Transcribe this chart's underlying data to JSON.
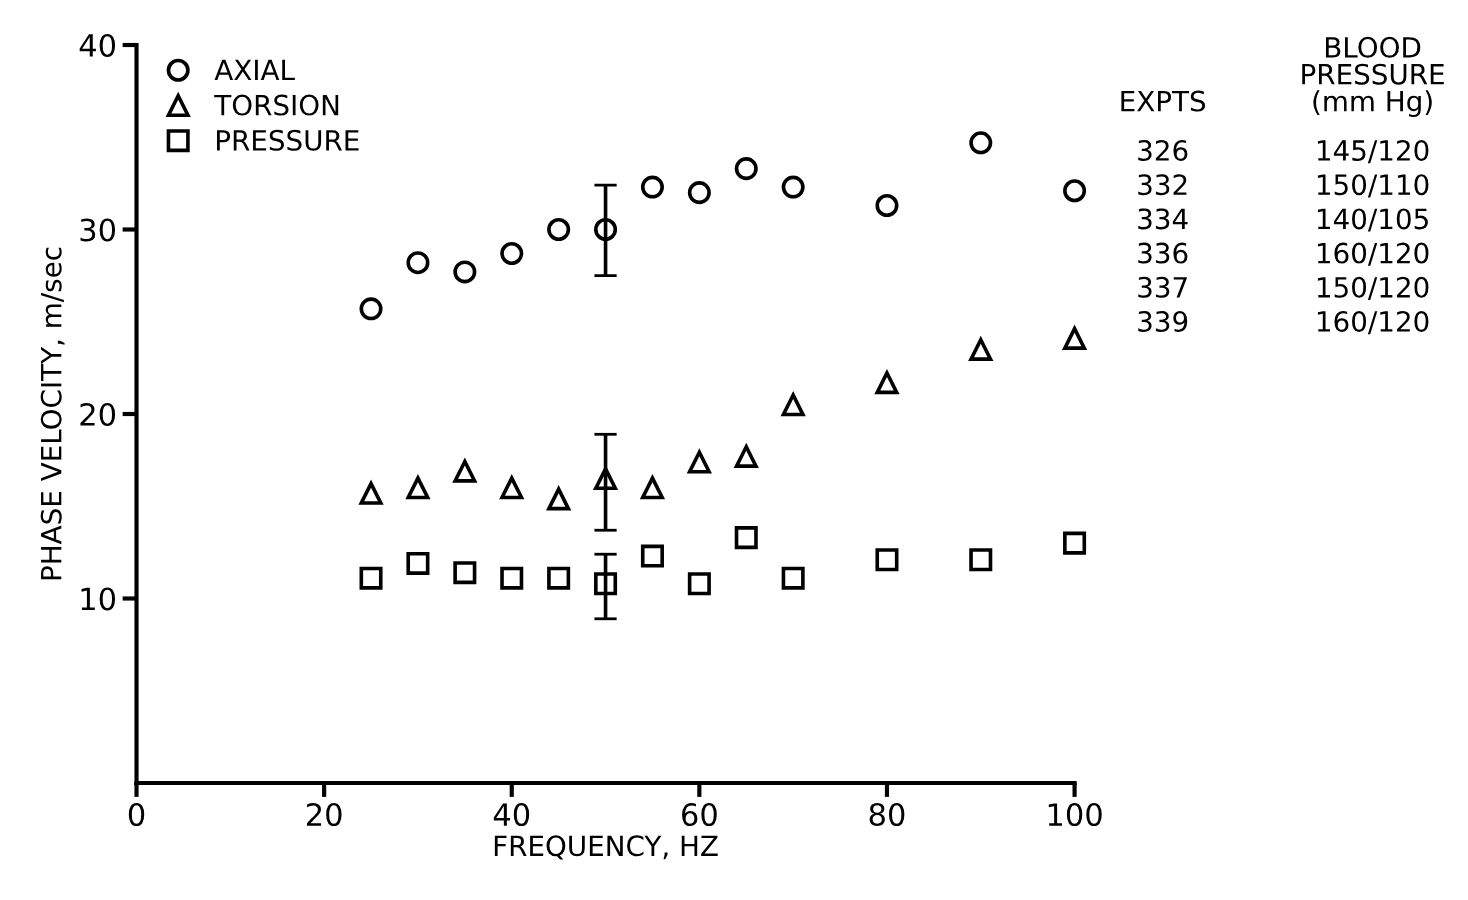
{
  "chart_data": {
    "type": "scatter",
    "xlabel": "FREQUENCY, HZ",
    "ylabel": "PHASE VELOCITY, m/sec",
    "x": [
      25,
      30,
      35,
      40,
      45,
      50,
      55,
      60,
      65,
      70,
      80,
      90,
      100
    ],
    "series": [
      {
        "name": "AXIAL",
        "color": "#000000",
        "marker": "circle",
        "values": [
          25.7,
          28.2,
          27.7,
          28.7,
          30.0,
          30.0,
          32.3,
          32.0,
          33.3,
          32.3,
          31.3,
          34.7,
          32.1
        ],
        "errors": [
          null,
          null,
          null,
          null,
          null,
          [
            27.5,
            32.4
          ],
          null,
          null,
          null,
          null,
          null,
          null,
          null
        ]
      },
      {
        "name": "TORSION",
        "color": "#000000",
        "marker": "triangle",
        "values": [
          15.7,
          16.0,
          16.9,
          16.0,
          15.4,
          16.5,
          16.0,
          17.4,
          17.7,
          20.5,
          21.7,
          23.5,
          24.1
        ],
        "errors": [
          null,
          null,
          null,
          null,
          null,
          [
            13.7,
            18.9
          ],
          null,
          null,
          null,
          null,
          null,
          null,
          null
        ]
      },
      {
        "name": "PRESSURE",
        "color": "#000000",
        "marker": "square",
        "values": [
          11.1,
          11.9,
          11.4,
          11.1,
          11.1,
          10.8,
          12.3,
          10.8,
          13.3,
          11.1,
          12.1,
          12.1,
          13.0
        ],
        "errors": [
          null,
          null,
          null,
          null,
          null,
          [
            8.9,
            12.4
          ],
          null,
          null,
          null,
          null,
          null,
          null,
          null
        ]
      }
    ],
    "xlim": [
      0,
      100
    ],
    "xticks": [
      0,
      20,
      40,
      60,
      80,
      100
    ],
    "ylim": [
      0,
      40
    ],
    "yticks": [
      10,
      20,
      30,
      40
    ],
    "legend": "top left",
    "grid": false,
    "annotations": [
      "EXPTS",
      "BLOOD\nPRESSURE\n(mm Hg)",
      "326",
      "145/120",
      "332",
      "150/110",
      "334",
      "140/105",
      "336",
      "160/120",
      "337",
      "150/120",
      "339",
      "160/120"
    ]
  }
}
